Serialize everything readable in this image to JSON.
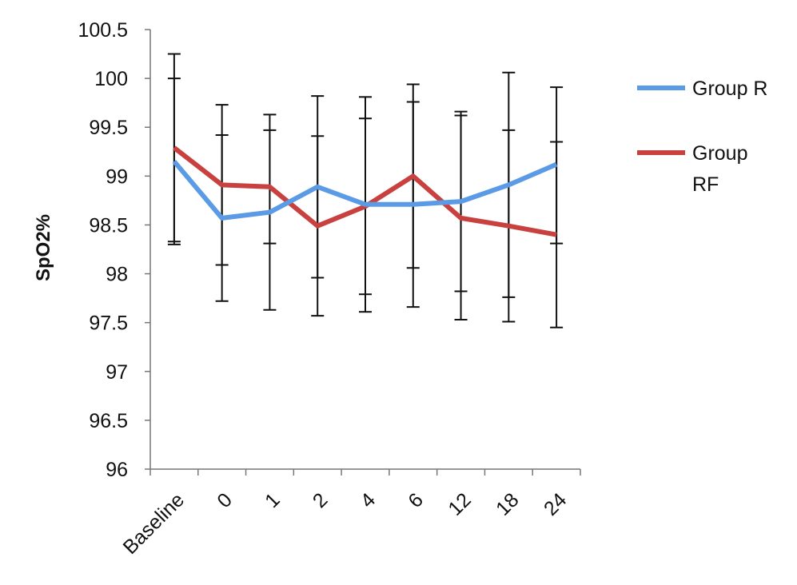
{
  "chart_data": {
    "type": "line",
    "title": "",
    "xlabel": "",
    "ylabel": "SpO2%",
    "ylim": [
      96,
      100.5
    ],
    "yticks": [
      "96",
      "96.5",
      "97",
      "97.5",
      "98",
      "98.5",
      "99",
      "99.5",
      "100",
      "100.5"
    ],
    "categories": [
      "Baseline",
      "0",
      "1",
      "2",
      "4",
      "6",
      "12",
      "18",
      "24"
    ],
    "legend_position": "right",
    "grid": false,
    "series": [
      {
        "name": "Group R",
        "color": "#5B9BE6",
        "values": [
          99.15,
          98.57,
          98.63,
          98.89,
          98.71,
          98.71,
          98.74,
          98.91,
          99.12
        ],
        "error_low": [
          98.3,
          97.72,
          97.63,
          97.96,
          97.61,
          97.66,
          97.53,
          97.51,
          97.45
        ],
        "error_high": [
          100.0,
          99.42,
          99.63,
          99.82,
          99.81,
          99.76,
          99.66,
          100.06,
          99.91
        ]
      },
      {
        "name": "Group RF",
        "color": "#C8413F",
        "values": [
          99.29,
          98.91,
          98.89,
          98.49,
          98.69,
          99.0,
          98.57,
          98.49,
          98.4
        ],
        "error_low": [
          98.33,
          98.09,
          98.31,
          97.57,
          97.79,
          98.06,
          97.82,
          97.76,
          98.31
        ],
        "error_high": [
          100.25,
          99.73,
          99.47,
          99.41,
          99.59,
          99.94,
          99.62,
          99.47,
          99.35
        ]
      }
    ]
  }
}
